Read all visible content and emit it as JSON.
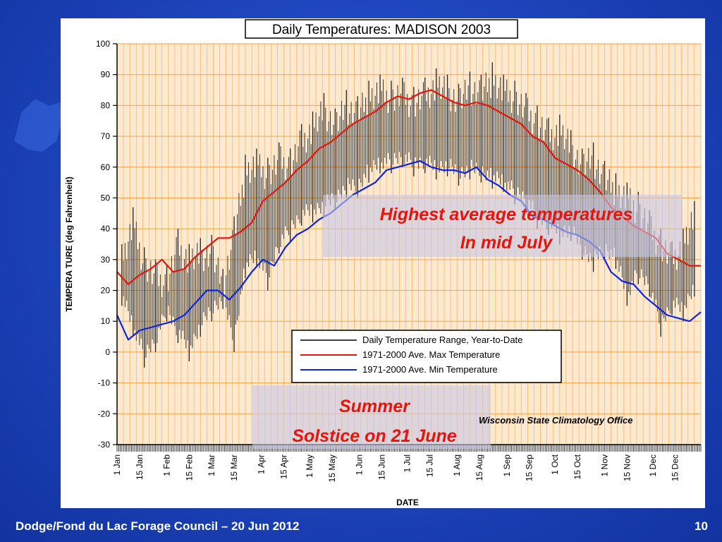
{
  "slide": {
    "footer_left": "Dodge/Fond du Lac Forage Council – 20 Jun 2012",
    "page_number": "10",
    "background_color": "#1f47bf"
  },
  "chart_data": {
    "type": "line",
    "title": "Daily Temperatures: MADISON 2003",
    "xlabel": "DATE",
    "ylabel": "TEMPERA TURE (deg Fahrenheit)",
    "ylim": [
      -30,
      100
    ],
    "yticks": [
      100,
      90,
      80,
      70,
      60,
      50,
      40,
      30,
      20,
      10,
      0,
      -10,
      -20,
      -30
    ],
    "xlim": [
      1,
      365
    ],
    "x_unit": "day of year",
    "grid": true,
    "plot_background": "#fde9d0",
    "grid_color": "#f5a340",
    "xtick_labels": [
      {
        "label": "1 Jan",
        "day": 1
      },
      {
        "label": "15 Jan",
        "day": 15
      },
      {
        "label": "1 Feb",
        "day": 32
      },
      {
        "label": "15 Feb",
        "day": 46
      },
      {
        "label": "1 Mar",
        "day": 60
      },
      {
        "label": "15 Mar",
        "day": 74
      },
      {
        "label": "1 Apr",
        "day": 91
      },
      {
        "label": "15 Apr",
        "day": 105
      },
      {
        "label": "1 May",
        "day": 121
      },
      {
        "label": "15 May",
        "day": 135
      },
      {
        "label": "1 Jun",
        "day": 152
      },
      {
        "label": "15 Jun",
        "day": 166
      },
      {
        "label": "1 Jul",
        "day": 182
      },
      {
        "label": "15 Jul",
        "day": 196
      },
      {
        "label": "1 Aug",
        "day": 213
      },
      {
        "label": "15 Aug",
        "day": 227
      },
      {
        "label": "1 Sep",
        "day": 244
      },
      {
        "label": "15 Sep",
        "day": 258
      },
      {
        "label": "1 Oct",
        "day": 274
      },
      {
        "label": "15 Oct",
        "day": 288
      },
      {
        "label": "1 Nov",
        "day": 305
      },
      {
        "label": "15 Nov",
        "day": 319
      },
      {
        "label": "1 Dec",
        "day": 335
      },
      {
        "label": "15 Dec",
        "day": 349
      }
    ],
    "legend": {
      "placement": "lower-right",
      "entries": [
        {
          "name": "Daily Temperature Range, Year-to-Date",
          "color": "#000000"
        },
        {
          "name": "1971-2000 Ave. Max Temperature",
          "color": "#e8140c"
        },
        {
          "name": "1971-2000 Ave. Min Temperature",
          "color": "#1024e0"
        }
      ]
    },
    "series": [
      {
        "name": "1971-2000 Ave. Max Temperature",
        "color": "#e8140c",
        "x": [
          1,
          8,
          15,
          22,
          29,
          36,
          43,
          50,
          57,
          64,
          71,
          78,
          85,
          92,
          99,
          106,
          113,
          120,
          127,
          134,
          141,
          148,
          155,
          162,
          169,
          176,
          183,
          190,
          197,
          204,
          211,
          218,
          225,
          232,
          239,
          246,
          253,
          260,
          267,
          274,
          281,
          288,
          295,
          302,
          309,
          316,
          323,
          330,
          337,
          344,
          351,
          358,
          365
        ],
        "y": [
          26,
          22,
          25,
          27,
          30,
          26,
          27,
          31,
          34,
          37,
          37,
          39,
          42,
          49,
          52,
          55,
          59,
          62,
          66,
          68,
          71,
          74,
          76,
          78,
          81,
          83,
          82,
          84,
          85,
          83,
          81,
          80,
          81,
          80,
          78,
          76,
          74,
          70,
          68,
          63,
          61,
          59,
          56,
          52,
          47,
          44,
          41,
          39,
          37,
          32,
          30,
          28,
          28
        ]
      },
      {
        "name": "1971-2000 Ave. Min Temperature",
        "color": "#1024e0",
        "x": [
          1,
          8,
          15,
          22,
          29,
          36,
          43,
          50,
          57,
          64,
          71,
          78,
          85,
          92,
          99,
          106,
          113,
          120,
          127,
          134,
          141,
          148,
          155,
          162,
          169,
          176,
          183,
          190,
          197,
          204,
          211,
          218,
          225,
          232,
          239,
          246,
          253,
          260,
          267,
          274,
          281,
          288,
          295,
          302,
          309,
          316,
          323,
          330,
          337,
          344,
          351,
          358,
          365
        ],
        "y": [
          12,
          4,
          7,
          8,
          9,
          10,
          12,
          16,
          20,
          20,
          17,
          21,
          26,
          30,
          28,
          34,
          38,
          40,
          43,
          45,
          48,
          51,
          53,
          55,
          59,
          60,
          61,
          62,
          60,
          59,
          59,
          58,
          60,
          56,
          54,
          51,
          49,
          44,
          43,
          41,
          39,
          38,
          36,
          33,
          26,
          23,
          22,
          18,
          15,
          12,
          11,
          10,
          13
        ]
      }
    ],
    "daily_range_samples": {
      "name": "Daily Temperature Range, Year-to-Date",
      "color": "#000000",
      "x": [
        4,
        11,
        18,
        25,
        32,
        39,
        46,
        53,
        60,
        67,
        74,
        81,
        88,
        95,
        102,
        109,
        116,
        123,
        130,
        137,
        144,
        151,
        158,
        165,
        172,
        179,
        186,
        193,
        200,
        207,
        214,
        221,
        228,
        235,
        242,
        249,
        256,
        263,
        270,
        277,
        284,
        291,
        298,
        305,
        312,
        319,
        326,
        333,
        340,
        347,
        354,
        361
      ],
      "low": [
        15,
        5,
        -5,
        0,
        10,
        3,
        -3,
        5,
        10,
        14,
        0,
        24,
        28,
        20,
        32,
        36,
        41,
        42,
        44,
        46,
        50,
        50,
        55,
        58,
        58,
        60,
        57,
        58,
        56,
        57,
        54,
        56,
        55,
        53,
        52,
        48,
        46,
        40,
        38,
        35,
        36,
        30,
        26,
        30,
        27,
        15,
        22,
        18,
        5,
        12,
        10,
        18
      ],
      "high": [
        35,
        47,
        34,
        30,
        28,
        40,
        35,
        37,
        38,
        27,
        44,
        64,
        66,
        63,
        68,
        66,
        74,
        78,
        84,
        79,
        85,
        83,
        88,
        90,
        88,
        89,
        86,
        89,
        92,
        90,
        87,
        91,
        90,
        94,
        90,
        88,
        84,
        80,
        76,
        77,
        72,
        66,
        68,
        62,
        58,
        55,
        52,
        46,
        40,
        36,
        40,
        49
      ]
    },
    "annotations": [
      {
        "text_lines": [
          "Highest average temperatures",
          "In mid July"
        ],
        "color": "#e8140c"
      },
      {
        "text_lines": [
          "Summer",
          "Solstice on 21 June"
        ],
        "color": "#e8140c"
      },
      {
        "text_lines": [
          "Wisconsin State Climatology Office"
        ],
        "color": "#000000"
      }
    ]
  }
}
